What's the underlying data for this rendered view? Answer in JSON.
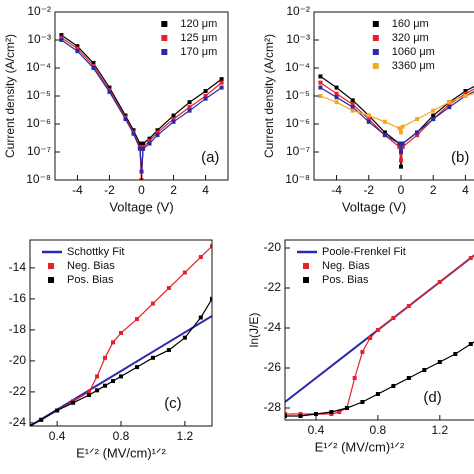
{
  "chart_data": [
    {
      "type": "line",
      "panel_label": "(a)",
      "xlabel": "Voltage (V)",
      "ylabel": "Current density (A/cm²)",
      "xlim": [
        -5.4,
        5.4
      ],
      "xticks": [
        -4,
        -2,
        0,
        2,
        4
      ],
      "ylim": [
        1e-08,
        0.01
      ],
      "log_y": true,
      "legend": "upper right",
      "yticks": [
        {
          "value": 1e-08,
          "label": "10⁻⁸"
        },
        {
          "value": 1e-07,
          "label": "10⁻⁷"
        },
        {
          "value": 1e-06,
          "label": "10⁻⁶"
        },
        {
          "value": 1e-05,
          "label": "10⁻⁵"
        },
        {
          "value": 0.0001,
          "label": "10⁻⁴"
        },
        {
          "value": 0.001,
          "label": "10⁻³"
        },
        {
          "value": 0.01,
          "label": "10⁻²"
        }
      ],
      "series": [
        {
          "name": "120 μm",
          "color": "#000000",
          "marker": "square",
          "x": [
            -5,
            -4,
            -3,
            -2,
            -1,
            -0.5,
            -0.1,
            0,
            0.1,
            0.5,
            1,
            2,
            3,
            4,
            5
          ],
          "values": [
            0.0015,
            0.0006,
            0.00015,
            2e-05,
            2e-06,
            6e-07,
            2e-07,
            1e-08,
            2e-07,
            3e-07,
            6e-07,
            2e-06,
            6e-06,
            1.5e-05,
            4e-05
          ]
        },
        {
          "name": "125 μm",
          "color": "#e8202a",
          "marker": "square",
          "x": [
            -5,
            -4,
            -3,
            -2,
            -1,
            -0.5,
            -0.1,
            0,
            0.1,
            0.5,
            1,
            2,
            3,
            4,
            5
          ],
          "values": [
            0.0012,
            0.0005,
            0.00012,
            1.6e-05,
            1.7e-06,
            5e-07,
            1.5e-07,
            1e-08,
            1.5e-07,
            2.5e-07,
            5e-07,
            1.5e-06,
            4e-06,
            1e-05,
            3e-05
          ]
        },
        {
          "name": "170 μm",
          "color": "#2a2aa8",
          "marker": "square",
          "x": [
            -5,
            -4,
            -3,
            -2,
            -1,
            -0.5,
            -0.1,
            0,
            0.1,
            0.5,
            1,
            2,
            3,
            4,
            5
          ],
          "values": [
            0.001,
            0.0004,
            0.0001,
            1.4e-05,
            1.5e-06,
            4.5e-07,
            1.3e-07,
            2e-08,
            1.3e-07,
            2e-07,
            4e-07,
            1.2e-06,
            3e-06,
            8e-06,
            2e-05
          ]
        }
      ]
    },
    {
      "type": "line",
      "panel_label": "(b)",
      "xlabel": "Voltage (V)",
      "ylabel": "Current density (A/cm²)",
      "xlim": [
        -5.4,
        5.4
      ],
      "xticks": [
        -4,
        -2,
        0,
        2,
        4
      ],
      "ylim": [
        1e-08,
        0.01
      ],
      "log_y": true,
      "legend": "upper right",
      "yticks": [
        {
          "value": 1e-08,
          "label": "10⁻⁸"
        },
        {
          "value": 1e-07,
          "label": "10⁻⁷"
        },
        {
          "value": 1e-06,
          "label": "10⁻⁶"
        },
        {
          "value": 1e-05,
          "label": "10⁻⁵"
        },
        {
          "value": 0.0001,
          "label": "10⁻⁴"
        },
        {
          "value": 0.001,
          "label": "10⁻³"
        },
        {
          "value": 0.01,
          "label": "10⁻²"
        }
      ],
      "series": [
        {
          "name": "160 μm",
          "color": "#000000",
          "marker": "square",
          "x": [
            -5,
            -4,
            -3,
            -2,
            -1,
            -0.1,
            0,
            0.1,
            1,
            2,
            3,
            4,
            5
          ],
          "values": [
            5e-05,
            2e-05,
            7e-06,
            2e-06,
            5e-07,
            2e-07,
            3e-08,
            2e-07,
            5e-07,
            2e-06,
            6e-06,
            1.5e-05,
            3e-05
          ]
        },
        {
          "name": "320 μm",
          "color": "#e8202a",
          "marker": "square",
          "x": [
            -5,
            -4,
            -3,
            -2,
            -1,
            -0.1,
            0,
            0.1,
            1,
            2,
            3,
            4,
            5
          ],
          "values": [
            3e-05,
            1.2e-05,
            5e-06,
            1.5e-06,
            4e-07,
            1.5e-07,
            5e-08,
            1.5e-07,
            4e-07,
            1.5e-06,
            5e-06,
            1.2e-05,
            2.5e-05
          ]
        },
        {
          "name": "1060 μm",
          "color": "#2a2aa8",
          "marker": "square",
          "x": [
            -5,
            -4,
            -3,
            -2,
            -1,
            -0.1,
            0,
            0.1,
            1,
            2,
            3,
            4,
            5
          ],
          "values": [
            2e-05,
            9e-06,
            4e-06,
            1.2e-06,
            4e-07,
            2e-07,
            1e-07,
            2e-07,
            5e-07,
            1.5e-06,
            4e-06,
            1e-05,
            2e-05
          ]
        },
        {
          "name": "3360 μm",
          "color": "#f5a623",
          "marker": "square",
          "x": [
            -5,
            -4,
            -3,
            -2,
            -1,
            -0.1,
            0,
            0.1,
            1,
            2,
            3,
            4,
            5
          ],
          "values": [
            1e-05,
            6e-06,
            3e-06,
            2e-06,
            1.2e-06,
            7e-07,
            5e-07,
            8e-07,
            1.5e-06,
            3e-06,
            6e-06,
            1e-05,
            1.5e-05
          ]
        }
      ]
    },
    {
      "type": "line",
      "panel_label": "(c)",
      "xlabel": "E¹ᐟ² (MV/cm)¹ᐟ²",
      "xlim": [
        0.23,
        1.37
      ],
      "xticks": [
        0.4,
        0.8,
        1.2
      ],
      "ylim": [
        -24.2,
        -12.2
      ],
      "yticks": [
        -24,
        -22,
        -20,
        -18,
        -16,
        -14
      ],
      "legend": "upper left",
      "series": [
        {
          "name": "Schottky Fit",
          "color": "#2a2aa8",
          "marker": "none",
          "x": [
            0.23,
            1.37
          ],
          "values": [
            -24.2,
            -17.1
          ]
        },
        {
          "name": "Neg. Bias",
          "color": "#e8202a",
          "marker": "square",
          "x": [
            0.23,
            0.3,
            0.4,
            0.5,
            0.6,
            0.65,
            0.7,
            0.75,
            0.8,
            0.9,
            1.0,
            1.1,
            1.2,
            1.3,
            1.37
          ],
          "values": [
            -24.2,
            -23.8,
            -23.2,
            -22.6,
            -22.0,
            -21.0,
            -19.8,
            -18.8,
            -18.2,
            -17.3,
            -16.3,
            -15.3,
            -14.3,
            -13.3,
            -12.6
          ]
        },
        {
          "name": "Pos. Bias",
          "color": "#000000",
          "marker": "square",
          "x": [
            0.23,
            0.3,
            0.4,
            0.5,
            0.6,
            0.65,
            0.7,
            0.75,
            0.8,
            0.9,
            1.0,
            1.1,
            1.2,
            1.3,
            1.37
          ],
          "values": [
            -24.2,
            -23.8,
            -23.2,
            -22.7,
            -22.2,
            -21.9,
            -21.6,
            -21.3,
            -21.0,
            -20.4,
            -19.8,
            -19.3,
            -18.5,
            -17.2,
            -16.0
          ]
        }
      ]
    },
    {
      "type": "line",
      "panel_label": "(d)",
      "xlabel": "E¹ᐟ² (MV/cm)¹ᐟ²",
      "ylabel": "ln(J/E)",
      "xlim": [
        0.2,
        1.55
      ],
      "xticks": [
        0.4,
        0.8,
        1.2
      ],
      "ylim": [
        -28.6,
        -19.6
      ],
      "yticks": [
        -28,
        -26,
        -24,
        -22,
        -20
      ],
      "legend": "upper left",
      "series": [
        {
          "name": "Poole-Frenkel Fit",
          "color": "#2a2aa8",
          "marker": "none",
          "x": [
            0.2,
            1.55
          ],
          "values": [
            -27.7,
            -19.6
          ]
        },
        {
          "name": "Neg. Bias",
          "color": "#e8202a",
          "marker": "square",
          "x": [
            0.2,
            0.3,
            0.4,
            0.5,
            0.55,
            0.6,
            0.65,
            0.7,
            0.75,
            0.8,
            0.9,
            1.0,
            1.2,
            1.4,
            1.5
          ],
          "values": [
            -28.3,
            -28.3,
            -28.3,
            -28.3,
            -28.2,
            -28.0,
            -26.5,
            -25.2,
            -24.5,
            -24.1,
            -23.5,
            -22.9,
            -21.7,
            -20.5,
            -19.9
          ]
        },
        {
          "name": "Pos. Bias",
          "color": "#000000",
          "marker": "square",
          "x": [
            0.2,
            0.3,
            0.4,
            0.5,
            0.6,
            0.7,
            0.8,
            0.9,
            1.0,
            1.1,
            1.2,
            1.3,
            1.4,
            1.5
          ],
          "values": [
            -28.4,
            -28.4,
            -28.3,
            -28.2,
            -28.0,
            -27.7,
            -27.3,
            -26.9,
            -26.5,
            -26.1,
            -25.7,
            -25.3,
            -24.8,
            -24.3
          ]
        }
      ]
    }
  ]
}
